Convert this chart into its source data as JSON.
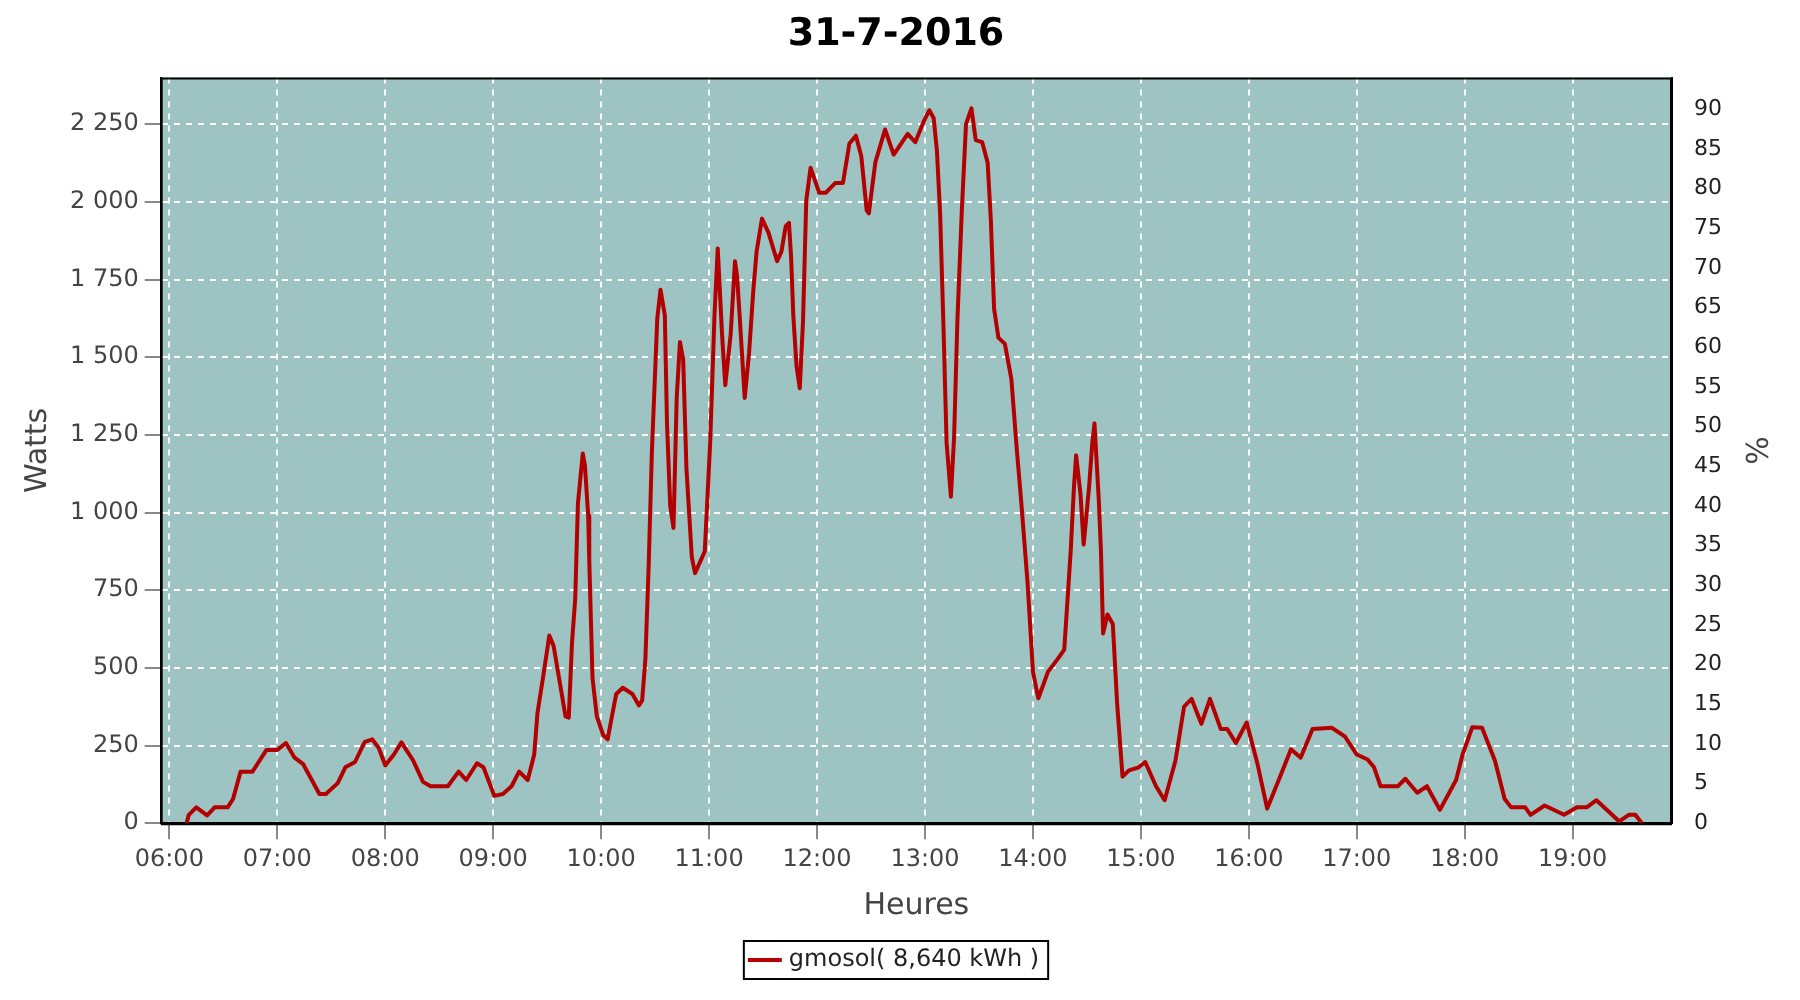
{
  "chart_data": {
    "type": "line",
    "title": "31-7-2016",
    "xlabel": "Heures",
    "ylabel": "Watts",
    "y2label": "%",
    "xlim": [
      5.92,
      19.92
    ],
    "xticks": [
      {
        "value": 6,
        "label": "06:00"
      },
      {
        "value": 7,
        "label": "07:00"
      },
      {
        "value": 8,
        "label": "08:00"
      },
      {
        "value": 9,
        "label": "09:00"
      },
      {
        "value": 10,
        "label": "10:00"
      },
      {
        "value": 11,
        "label": "11:00"
      },
      {
        "value": 12,
        "label": "12:00"
      },
      {
        "value": 13,
        "label": "13:00"
      },
      {
        "value": 14,
        "label": "14:00"
      },
      {
        "value": 15,
        "label": "15:00"
      },
      {
        "value": 16,
        "label": "16:00"
      },
      {
        "value": 17,
        "label": "17:00"
      },
      {
        "value": 18,
        "label": "18:00"
      },
      {
        "value": 19,
        "label": "19:00"
      }
    ],
    "ylim": [
      0,
      2400
    ],
    "yticks": [
      0,
      250,
      500,
      750,
      {
        "value": 1000,
        "label": "1 000"
      },
      {
        "value": 1250,
        "label": "1 250"
      },
      {
        "value": 1500,
        "label": "1 500"
      },
      {
        "value": 1750,
        "label": "1 750"
      },
      {
        "value": 2000,
        "label": "2 000"
      },
      {
        "value": 2250,
        "label": "2 250"
      }
    ],
    "y2lim": [
      0,
      94
    ],
    "y2ticks": [
      0,
      5,
      10,
      15,
      20,
      25,
      30,
      35,
      40,
      45,
      50,
      55,
      60,
      65,
      70,
      75,
      80,
      85,
      90
    ],
    "grid": true,
    "legend": "bottom",
    "series": [
      {
        "name": "gmosol( 8,640 kWh )",
        "color": "#b30000",
        "x": [
          6.16,
          6.18,
          6.25,
          6.35,
          6.42,
          6.54,
          6.59,
          6.66,
          6.77,
          6.9,
          7.0,
          7.08,
          7.16,
          7.24,
          7.39,
          7.45,
          7.56,
          7.63,
          7.72,
          7.81,
          7.88,
          7.94,
          8.0,
          8.08,
          8.15,
          8.26,
          8.35,
          8.42,
          8.58,
          8.68,
          8.75,
          8.85,
          8.91,
          9.01,
          9.09,
          9.17,
          9.24,
          9.32,
          9.38,
          9.41,
          9.47,
          9.52,
          9.56,
          9.62,
          9.67,
          9.7,
          9.73,
          9.76,
          9.785,
          9.83,
          9.85,
          9.88,
          9.89,
          9.92,
          9.96,
          10.02,
          10.06,
          10.1,
          10.14,
          10.2,
          10.29,
          10.35,
          10.38,
          10.41,
          10.44,
          10.47,
          10.52,
          10.55,
          10.59,
          10.61,
          10.64,
          10.67,
          10.7,
          10.73,
          10.76,
          10.79,
          10.84,
          10.87,
          10.96,
          11.01,
          11.05,
          11.08,
          11.12,
          11.15,
          11.2,
          11.24,
          11.26,
          11.29,
          11.33,
          11.37,
          11.41,
          11.44,
          11.49,
          11.55,
          11.63,
          11.67,
          11.71,
          11.74,
          11.76,
          11.78,
          11.81,
          11.84,
          11.87,
          11.9,
          11.94,
          12.02,
          12.08,
          12.17,
          12.24,
          12.3,
          12.36,
          12.41,
          12.46,
          12.48,
          12.54,
          12.63,
          12.71,
          12.84,
          12.91,
          12.99,
          13.04,
          13.08,
          13.11,
          13.14,
          13.17,
          13.2,
          13.24,
          13.27,
          13.3,
          13.34,
          13.38,
          13.43,
          13.47,
          13.53,
          13.58,
          13.61,
          13.64,
          13.68,
          13.74,
          13.8,
          13.85,
          13.89,
          13.95,
          14.0,
          14.05,
          14.14,
          14.23,
          14.29,
          14.35,
          14.38,
          14.4,
          14.44,
          14.47,
          14.52,
          14.55,
          14.57,
          14.61,
          14.63,
          14.65,
          14.69,
          14.74,
          14.78,
          14.83,
          14.89,
          14.98,
          15.04,
          15.14,
          15.22,
          15.32,
          15.4,
          15.47,
          15.56,
          15.64,
          15.74,
          15.8,
          15.88,
          15.98,
          16.08,
          16.17,
          16.29,
          16.39,
          16.48,
          16.59,
          16.77,
          16.89,
          17.0,
          17.1,
          17.16,
          17.22,
          17.38,
          17.45,
          17.56,
          17.65,
          17.77,
          17.92,
          17.98,
          18.07,
          18.16,
          18.28,
          18.37,
          18.43,
          18.56,
          18.61,
          18.74,
          18.92,
          19.04,
          19.13,
          19.22,
          19.43,
          19.52,
          19.58,
          19.64
        ],
        "values": [
          0,
          27,
          51,
          25,
          51,
          51,
          78,
          166,
          166,
          236,
          236,
          258,
          211,
          190,
          94,
          94,
          129,
          180,
          197,
          262,
          270,
          242,
          186,
          221,
          260,
          201,
          133,
          119,
          119,
          166,
          139,
          193,
          180,
          88,
          94,
          119,
          166,
          139,
          221,
          354,
          488,
          604,
          570,
          447,
          344,
          340,
          580,
          723,
          1030,
          1190,
          1150,
          990,
          846,
          467,
          344,
          283,
          270,
          344,
          416,
          436,
          416,
          379,
          395,
          529,
          826,
          1195,
          1625,
          1717,
          1635,
          1287,
          1020,
          950,
          1369,
          1549,
          1492,
          1143,
          856,
          805,
          875,
          1225,
          1635,
          1850,
          1574,
          1410,
          1574,
          1809,
          1758,
          1594,
          1369,
          1512,
          1717,
          1840,
          1946,
          1901,
          1809,
          1840,
          1922,
          1932,
          1820,
          1635,
          1471,
          1400,
          1615,
          2004,
          2110,
          2029,
          2029,
          2061,
          2061,
          2188,
          2213,
          2147,
          1973,
          1963,
          2127,
          2233,
          2152,
          2219,
          2192,
          2260,
          2295,
          2270,
          2168,
          1963,
          1615,
          1225,
          1051,
          1246,
          1615,
          1963,
          2250,
          2301,
          2199,
          2192,
          2127,
          1942,
          1656,
          1563,
          1543,
          1430,
          1205,
          1041,
          775,
          488,
          402,
          488,
          529,
          559,
          877,
          1082,
          1184,
          1061,
          897,
          1082,
          1225,
          1287,
          1041,
          877,
          611,
          672,
          641,
          385,
          150,
          170,
          180,
          197,
          119,
          74,
          201,
          375,
          400,
          320,
          400,
          303,
          303,
          258,
          324,
          191,
          47,
          150,
          238,
          211,
          303,
          307,
          279,
          221,
          205,
          180,
          119,
          119,
          143,
          98,
          119,
          43,
          139,
          221,
          309,
          307,
          201,
          78,
          51,
          51,
          27,
          57,
          27,
          51,
          51,
          74,
          6,
          27,
          27,
          0
        ]
      }
    ]
  }
}
